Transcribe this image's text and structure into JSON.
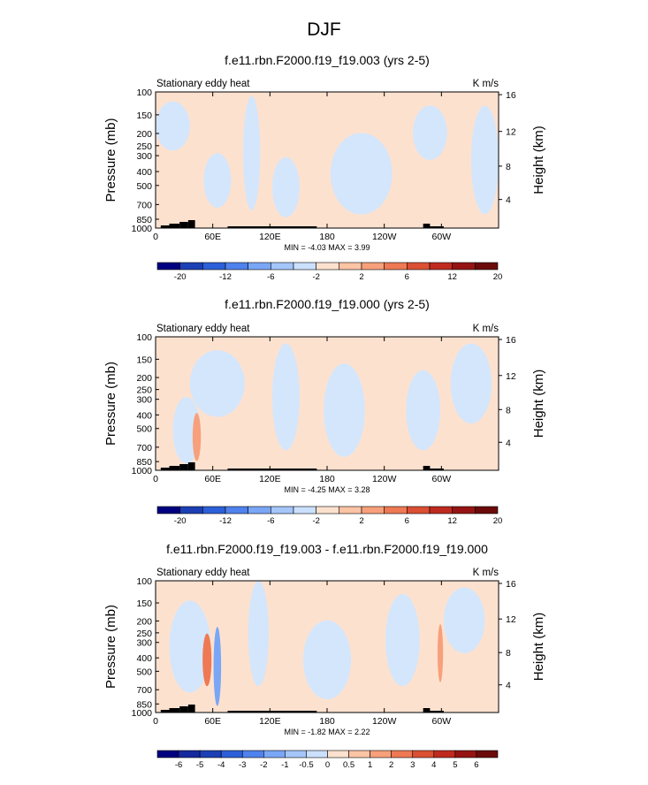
{
  "figure": {
    "title": "DJF"
  },
  "colors": {
    "pos_weak": "#fde1cf",
    "neg_weak": "#d4e6fb",
    "terrain": "#000000"
  },
  "chart_data": [
    {
      "type": "heatmap",
      "title": "f.e11.rbn.F2000.f19_f19.003 (yrs 2-5)",
      "left_label": "Stationary eddy heat",
      "right_label": "K m/s",
      "ylabel": "Pressure (mb)",
      "ylabel_right": "Height (km)",
      "x_ticks": [
        "0",
        "60E",
        "120E",
        "180",
        "120W",
        "60W"
      ],
      "y_ticks": [
        "100",
        "150",
        "200",
        "250",
        "300",
        "400",
        "500",
        "700",
        "850",
        "1000"
      ],
      "y_right_ticks": [
        "16",
        "12",
        "8",
        "4"
      ],
      "stats": "MIN = -4.03  MAX = 3.99",
      "colorbar_levels": [
        "-20",
        "-12",
        "-6",
        "-2",
        "2",
        "6",
        "12",
        "20"
      ],
      "colorbar_colors": [
        "#000080",
        "#1c3fb5",
        "#2d60d8",
        "#4f82ec",
        "#7aa6f6",
        "#a4c6fb",
        "#cbe0fd",
        "#fde1cf",
        "#fcc3a5",
        "#f7a07b",
        "#ee7954",
        "#db4f33",
        "#bf2a1f",
        "#951413",
        "#6b0a0a"
      ]
    },
    {
      "type": "heatmap",
      "title": "f.e11.rbn.F2000.f19_f19.000 (yrs 2-5)",
      "left_label": "Stationary eddy heat",
      "right_label": "K m/s",
      "ylabel": "Pressure (mb)",
      "ylabel_right": "Height (km)",
      "x_ticks": [
        "0",
        "60E",
        "120E",
        "180",
        "120W",
        "60W"
      ],
      "y_ticks": [
        "100",
        "150",
        "200",
        "250",
        "300",
        "400",
        "500",
        "700",
        "850",
        "1000"
      ],
      "y_right_ticks": [
        "16",
        "12",
        "8",
        "4"
      ],
      "stats": "MIN = -4.25  MAX = 3.28",
      "colorbar_levels": [
        "-20",
        "-12",
        "-6",
        "-2",
        "2",
        "6",
        "12",
        "20"
      ],
      "colorbar_colors": [
        "#000080",
        "#1c3fb5",
        "#2d60d8",
        "#4f82ec",
        "#7aa6f6",
        "#a4c6fb",
        "#cbe0fd",
        "#fde1cf",
        "#fcc3a5",
        "#f7a07b",
        "#ee7954",
        "#db4f33",
        "#bf2a1f",
        "#951413",
        "#6b0a0a"
      ]
    },
    {
      "type": "heatmap",
      "title": "f.e11.rbn.F2000.f19_f19.003 - f.e11.rbn.F2000.f19_f19.000",
      "left_label": "Stationary eddy heat",
      "right_label": "K m/s",
      "ylabel": "Pressure (mb)",
      "ylabel_right": "Height (km)",
      "x_ticks": [
        "0",
        "60E",
        "120E",
        "180",
        "120W",
        "60W"
      ],
      "y_ticks": [
        "100",
        "150",
        "200",
        "250",
        "300",
        "400",
        "500",
        "700",
        "850",
        "1000"
      ],
      "y_right_ticks": [
        "16",
        "12",
        "8",
        "4"
      ],
      "stats": "MIN = -1.82  MAX = 2.22",
      "colorbar_levels": [
        "-6",
        "-5",
        "-4",
        "-3",
        "-2",
        "-1",
        "-0.5",
        "0",
        "0.5",
        "1",
        "2",
        "3",
        "4",
        "5",
        "6"
      ],
      "colorbar_colors": [
        "#000080",
        "#14299e",
        "#1c3fb5",
        "#2d60d8",
        "#4f82ec",
        "#7aa6f6",
        "#a4c6fb",
        "#cbe0fd",
        "#fde1cf",
        "#fcc3a5",
        "#f7a07b",
        "#ee7954",
        "#db4f33",
        "#bf2a1f",
        "#951413",
        "#6b0a0a"
      ]
    }
  ]
}
